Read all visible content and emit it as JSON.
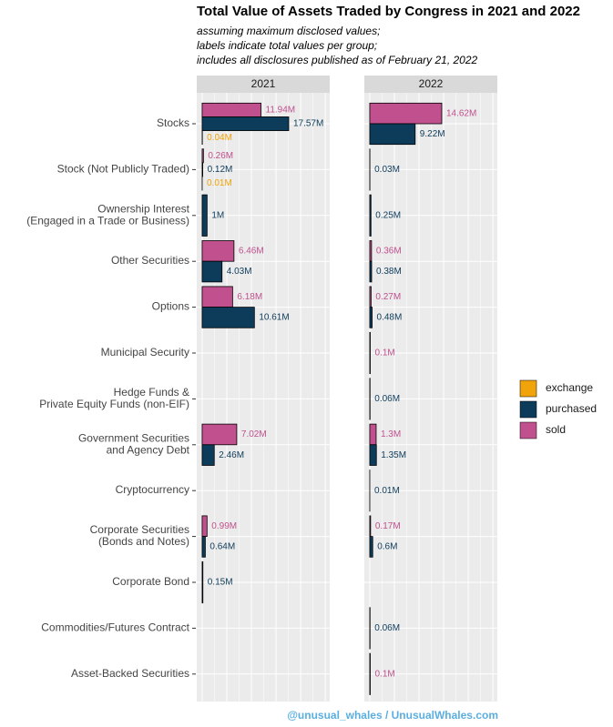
{
  "chart_data": {
    "type": "bar",
    "orientation": "horizontal",
    "title": "Total Value of Assets Traded by Congress in 2021 and 2022",
    "subtitle": [
      "assuming maximum disclosed values;",
      "labels indicate total values per group;",
      "includes all disclosures published as of February 21, 2022"
    ],
    "caption": "@unusual_whales / UnusualWhales.com",
    "categories": [
      "Stocks",
      "Stock (Not Publicly Traded)",
      "Ownership Interest\n(Engaged in a Trade or Business)",
      "Other Securities",
      "Options",
      "Municipal Security",
      "Hedge Funds &\nPrivate Equity Funds (non-EIF)",
      "Government Securities\nand Agency Debt",
      "Cryptocurrency",
      "Corporate Securities\n(Bonds and Notes)",
      "Corporate Bond",
      "Commodities/Futures Contract",
      "Asset-Backed Securities"
    ],
    "xlim": [
      -1.1,
      25.9
    ],
    "xgrid": [
      0,
      5,
      10,
      15,
      20,
      25
    ],
    "xgrid_minor": [
      2.5,
      7.5,
      12.5,
      17.5,
      22.5
    ],
    "legend_position": "right",
    "series": [
      {
        "name": "exchange",
        "color": "#f0a30a"
      },
      {
        "name": "purchased",
        "color": "#0d3b5a"
      },
      {
        "name": "sold",
        "color": "#c0508e"
      }
    ],
    "facets": [
      {
        "label": "2021",
        "series": [
          {
            "values": [
              0.04,
              0.01,
              null,
              null,
              null,
              null,
              null,
              null,
              null,
              null,
              null,
              null,
              null
            ],
            "value_labels": [
              "0.04M",
              "0.01M",
              null,
              null,
              null,
              null,
              null,
              null,
              null,
              null,
              null,
              null,
              null
            ]
          },
          {
            "values": [
              17.57,
              0.12,
              1,
              4.03,
              10.61,
              null,
              null,
              2.46,
              null,
              0.64,
              0.15,
              null,
              null
            ],
            "value_labels": [
              "17.57M",
              "0.12M",
              "1M",
              "4.03M",
              "10.61M",
              null,
              null,
              "2.46M",
              null,
              "0.64M",
              "0.15M",
              null,
              null
            ]
          },
          {
            "values": [
              11.94,
              0.26,
              null,
              6.46,
              6.18,
              null,
              null,
              7.02,
              null,
              0.99,
              null,
              null,
              null
            ],
            "value_labels": [
              "11.94M",
              "0.26M",
              null,
              "6.46M",
              "6.18M",
              null,
              null,
              "7.02M",
              null,
              "0.99M",
              null,
              null,
              null
            ]
          }
        ]
      },
      {
        "label": "2022",
        "series": [
          {
            "values": [
              null,
              null,
              null,
              null,
              null,
              null,
              null,
              null,
              null,
              null,
              null,
              null,
              null
            ],
            "value_labels": [
              null,
              null,
              null,
              null,
              null,
              null,
              null,
              null,
              null,
              null,
              null,
              null,
              null
            ]
          },
          {
            "values": [
              9.22,
              0.03,
              0.25,
              0.38,
              0.48,
              null,
              0.06,
              1.35,
              0.01,
              0.6,
              null,
              0.06,
              null
            ],
            "value_labels": [
              "9.22M",
              "0.03M",
              "0.25M",
              "0.38M",
              "0.48M",
              null,
              "0.06M",
              "1.35M",
              "0.01M",
              "0.6M",
              null,
              "0.06M",
              null
            ]
          },
          {
            "values": [
              14.62,
              null,
              null,
              0.36,
              0.27,
              0.1,
              null,
              1.3,
              null,
              0.17,
              null,
              null,
              0.1
            ],
            "value_labels": [
              "14.62M",
              null,
              null,
              "0.36M",
              "0.27M",
              "0.1M",
              null,
              "1.3M",
              null,
              "0.17M",
              null,
              null,
              "0.1M"
            ]
          }
        ]
      }
    ]
  }
}
